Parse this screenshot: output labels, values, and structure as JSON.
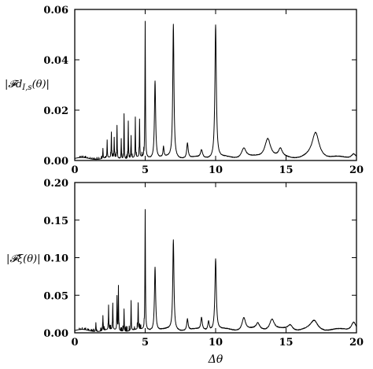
{
  "chart_data": [
    {
      "type": "line",
      "ylabel": "|𝓕d",
      "ylabel_sub": "I,s",
      "ylabel_tail": "(θ)|",
      "xlabel": "",
      "xlim": [
        0,
        20
      ],
      "ylim": [
        0,
        0.06
      ],
      "xticks": [
        "0",
        "5",
        "10",
        "15",
        "20"
      ],
      "yticks": [
        "0.00",
        "0.02",
        "0.04",
        "0.06"
      ],
      "baseline": 0.0008,
      "noise_range": [
        0.3,
        5
      ],
      "noise_level": 0.0015,
      "peaks": [
        {
          "x": 2.0,
          "y": 0.004,
          "w": 0.015
        },
        {
          "x": 2.3,
          "y": 0.007,
          "w": 0.015
        },
        {
          "x": 2.6,
          "y": 0.01,
          "w": 0.015
        },
        {
          "x": 2.8,
          "y": 0.008,
          "w": 0.015
        },
        {
          "x": 3.0,
          "y": 0.013,
          "w": 0.015
        },
        {
          "x": 3.3,
          "y": 0.008,
          "w": 0.015
        },
        {
          "x": 3.5,
          "y": 0.018,
          "w": 0.015
        },
        {
          "x": 3.8,
          "y": 0.015,
          "w": 0.015
        },
        {
          "x": 4.0,
          "y": 0.009,
          "w": 0.015
        },
        {
          "x": 4.3,
          "y": 0.016,
          "w": 0.015
        },
        {
          "x": 4.6,
          "y": 0.015,
          "w": 0.015
        },
        {
          "x": 5.0,
          "y": 0.054,
          "w": 0.02
        },
        {
          "x": 5.7,
          "y": 0.031,
          "w": 0.05
        },
        {
          "x": 6.3,
          "y": 0.004,
          "w": 0.04
        },
        {
          "x": 7.0,
          "y": 0.053,
          "w": 0.05
        },
        {
          "x": 8.0,
          "y": 0.006,
          "w": 0.06
        },
        {
          "x": 9.0,
          "y": 0.003,
          "w": 0.08
        },
        {
          "x": 10.0,
          "y": 0.053,
          "w": 0.06
        },
        {
          "x": 12.0,
          "y": 0.004,
          "w": 0.2
        },
        {
          "x": 13.7,
          "y": 0.008,
          "w": 0.25
        },
        {
          "x": 14.6,
          "y": 0.003,
          "w": 0.15
        },
        {
          "x": 17.1,
          "y": 0.01,
          "w": 0.3
        },
        {
          "x": 19.8,
          "y": 0.002,
          "w": 0.2
        }
      ]
    },
    {
      "type": "line",
      "ylabel": "|𝓕ξ(θ)|",
      "xlabel": "Δθ",
      "xlim": [
        0,
        20
      ],
      "ylim": [
        0,
        0.2
      ],
      "xticks": [
        "0",
        "5",
        "10",
        "15",
        "20"
      ],
      "yticks": [
        "0.00",
        "0.05",
        "0.10",
        "0.15",
        "0.20"
      ],
      "baseline": 0.003,
      "noise_range": [
        0.3,
        5
      ],
      "noise_level": 0.006,
      "peaks": [
        {
          "x": 1.5,
          "y": 0.012,
          "w": 0.015
        },
        {
          "x": 2.0,
          "y": 0.02,
          "w": 0.015
        },
        {
          "x": 2.4,
          "y": 0.03,
          "w": 0.015
        },
        {
          "x": 2.7,
          "y": 0.035,
          "w": 0.015
        },
        {
          "x": 3.0,
          "y": 0.045,
          "w": 0.015
        },
        {
          "x": 3.1,
          "y": 0.058,
          "w": 0.015
        },
        {
          "x": 3.5,
          "y": 0.03,
          "w": 0.015
        },
        {
          "x": 4.0,
          "y": 0.04,
          "w": 0.015
        },
        {
          "x": 4.5,
          "y": 0.035,
          "w": 0.015
        },
        {
          "x": 5.0,
          "y": 0.16,
          "w": 0.02
        },
        {
          "x": 5.7,
          "y": 0.085,
          "w": 0.05
        },
        {
          "x": 7.0,
          "y": 0.12,
          "w": 0.05
        },
        {
          "x": 8.0,
          "y": 0.015,
          "w": 0.06
        },
        {
          "x": 9.0,
          "y": 0.016,
          "w": 0.06
        },
        {
          "x": 9.5,
          "y": 0.012,
          "w": 0.06
        },
        {
          "x": 10.0,
          "y": 0.095,
          "w": 0.06
        },
        {
          "x": 12.0,
          "y": 0.017,
          "w": 0.15
        },
        {
          "x": 13.0,
          "y": 0.008,
          "w": 0.15
        },
        {
          "x": 14.0,
          "y": 0.015,
          "w": 0.2
        },
        {
          "x": 15.3,
          "y": 0.007,
          "w": 0.2
        },
        {
          "x": 17.0,
          "y": 0.012,
          "w": 0.3
        },
        {
          "x": 19.8,
          "y": 0.012,
          "w": 0.2
        }
      ]
    }
  ]
}
